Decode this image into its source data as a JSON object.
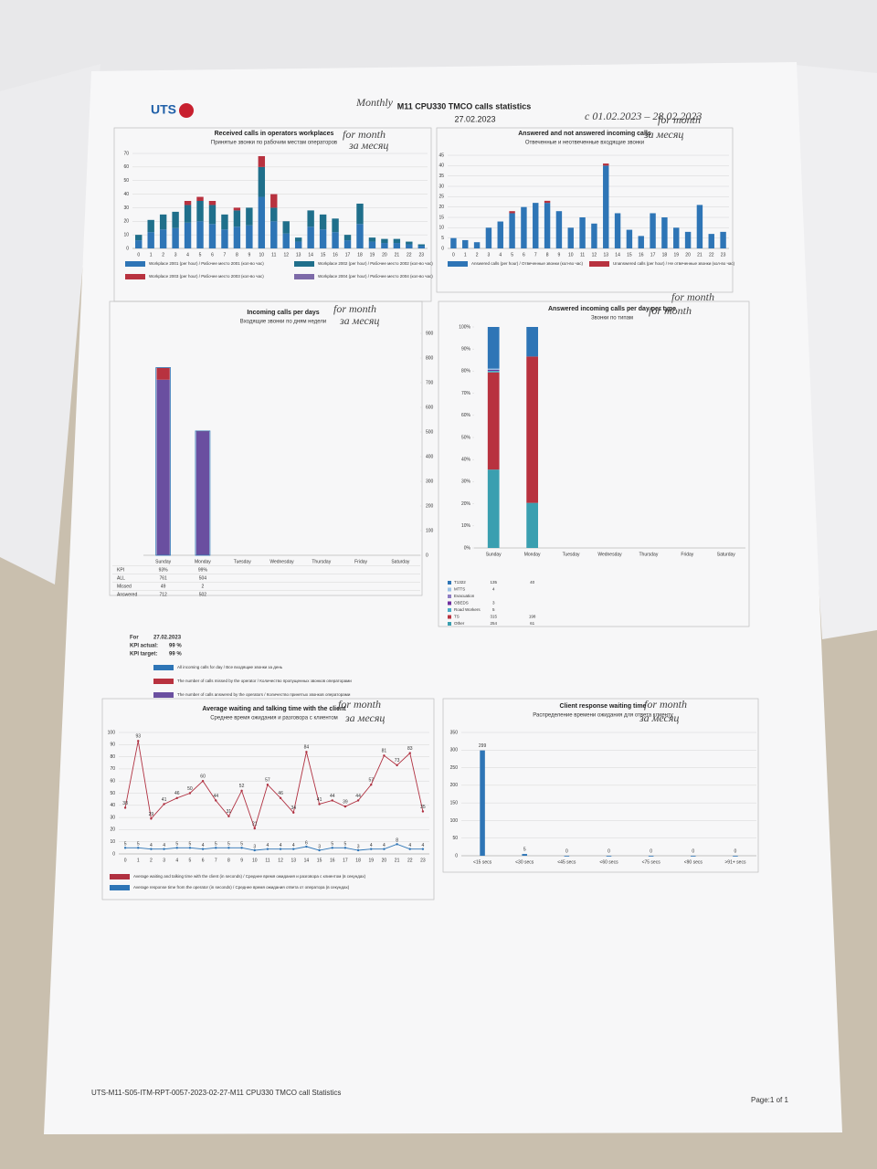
{
  "header": {
    "logo": "UTS",
    "title": "M11 CPU330 TMCO calls statistics",
    "date": "27.02.2023"
  },
  "handwritten_notes": [
    "Monthly",
    "с 01.02.2023 – 28.02.2023",
    "for month",
    "за месяц",
    "for month",
    "за месяц",
    "for month",
    "за месяц",
    "for month",
    "for month",
    "for month",
    "за месяц",
    "for month",
    "за месяц"
  ],
  "kpi_block": {
    "for_label": "For",
    "for_date": "27.02.2023",
    "actual_label": "KPI actual:",
    "actual": "99 %",
    "target_label": "KPI target:",
    "target": "99 %"
  },
  "footer": {
    "doc_id": "UTS-M11-S05-ITM-RPT-0057-2023-02-27-M11 CPU330 TMCO call Statistics",
    "page": "Page:1 of 1"
  },
  "chart_data": [
    {
      "type": "bar",
      "stacked": true,
      "title": "Received calls in operators workplaces",
      "subtitle": "Принятые звонки по рабочим местам операторов",
      "categories": [
        "0",
        "1",
        "2",
        "3",
        "4",
        "5",
        "6",
        "7",
        "8",
        "9",
        "10",
        "11",
        "12",
        "13",
        "14",
        "15",
        "16",
        "17",
        "18",
        "19",
        "20",
        "21",
        "22",
        "23"
      ],
      "series": [
        {
          "name": "Workplace 2001 (per hour) / Рабочее место 2001 (кол-во час)",
          "color": "#2e75b6",
          "values": [
            6,
            12,
            14,
            15,
            19,
            20,
            18,
            14,
            16,
            17,
            38,
            20,
            11,
            5,
            16,
            14,
            12,
            6,
            18,
            5,
            4,
            4,
            3,
            2
          ]
        },
        {
          "name": "Workplace 2002 (per hour) / Рабочее место 2002 (кол-во час)",
          "color": "#1f6f8b",
          "values": [
            4,
            9,
            11,
            12,
            13,
            15,
            14,
            11,
            12,
            13,
            22,
            10,
            9,
            3,
            12,
            11,
            10,
            4,
            15,
            3,
            3,
            3,
            2,
            1
          ]
        },
        {
          "name": "Workplace 2003 (per hour) / Рабочее место 2003 (кол-во час)",
          "color": "#b8323f",
          "values": [
            0,
            0,
            0,
            0,
            3,
            3,
            3,
            0,
            2,
            0,
            8,
            10,
            0,
            0,
            0,
            0,
            0,
            0,
            0,
            0,
            0,
            0,
            0,
            0
          ]
        },
        {
          "name": "Workplace 2004 (per hour) / Рабочее место 2004 (кол-во час)",
          "color": "#7d6aa8",
          "values": [
            0,
            0,
            0,
            0,
            0,
            0,
            0,
            0,
            0,
            0,
            0,
            0,
            0,
            0,
            0,
            0,
            0,
            0,
            0,
            0,
            0,
            0,
            0,
            0
          ]
        }
      ],
      "ylim": [
        0,
        70
      ],
      "yticks": [
        0,
        10,
        20,
        30,
        40,
        50,
        60,
        70
      ],
      "grid": true
    },
    {
      "type": "bar",
      "stacked": true,
      "title": "Answered and not answered incoming calls",
      "subtitle": "Отвеченные и неотвеченные входящие звонки",
      "categories": [
        "0",
        "1",
        "2",
        "3",
        "4",
        "5",
        "6",
        "7",
        "8",
        "9",
        "10",
        "11",
        "12",
        "13",
        "14",
        "15",
        "16",
        "17",
        "18",
        "19",
        "20",
        "21",
        "22",
        "23"
      ],
      "series": [
        {
          "name": "Answered calls (per hour) / Отвеченные звонки (кол-во час)",
          "color": "#2e75b6",
          "values": [
            5,
            4,
            3,
            10,
            13,
            17,
            20,
            22,
            22,
            18,
            10,
            15,
            12,
            40,
            17,
            9,
            6,
            17,
            15,
            10,
            8,
            21,
            7,
            8
          ]
        },
        {
          "name": "Unanswered calls (per hour) / Не отвеченные звонки (кол-во час)",
          "color": "#b8323f",
          "values": [
            0,
            0,
            0,
            0,
            0,
            1,
            0,
            0,
            1,
            0,
            0,
            0,
            0,
            1,
            0,
            0,
            0,
            0,
            0,
            0,
            0,
            0,
            0,
            0
          ]
        }
      ],
      "ylim": [
        0,
        45
      ],
      "yticks": [
        0,
        5,
        10,
        15,
        20,
        25,
        30,
        35,
        40,
        45
      ],
      "grid": true
    },
    {
      "type": "bar",
      "stacked": true,
      "title": "Incoming calls per days",
      "subtitle": "Входящие звонки по дням недели",
      "categories": [
        "Sunday",
        "Monday",
        "Tuesday",
        "Wednesday",
        "Thursday",
        "Friday",
        "Saturday"
      ],
      "series": [
        {
          "name": "All incoming calls for day / Все входящие звонки за день",
          "color": "#2e75b6",
          "style": "outline",
          "axis": "y2",
          "values": [
            761,
            504,
            null,
            null,
            null,
            null,
            null
          ]
        },
        {
          "name": "The number of calls missed by the operator / Количество пропущенных звонков операторами",
          "color": "#b8323f",
          "axis": "y2",
          "values": [
            49,
            2,
            null,
            null,
            null,
            null,
            null
          ]
        },
        {
          "name": "The number of calls answered by the operators / Количество принятых звонков операторами",
          "color": "#6a4fa0",
          "axis": "y2",
          "values": [
            712,
            502,
            null,
            null,
            null,
            null,
            null
          ]
        }
      ],
      "stack_order": [
        2,
        1
      ],
      "table_row_labels": [
        "KPI",
        "ALL",
        "Missed",
        "Answered"
      ],
      "kpi": [
        "93%",
        "99%",
        null,
        null,
        null,
        null,
        null
      ],
      "y2lim": [
        0,
        900
      ],
      "y2ticks": [
        0,
        100,
        200,
        300,
        400,
        500,
        600,
        700,
        800,
        900
      ],
      "grid": false
    },
    {
      "type": "bar",
      "stacked": "percent",
      "title": "Answered incoming calls per day per type",
      "subtitle": "Звонки по типам",
      "categories": [
        "Sunday",
        "Monday",
        "Tuesday",
        "Wednesday",
        "Thursday",
        "Friday",
        "Saturday"
      ],
      "series": [
        {
          "name": "T1322",
          "color": "#2e75b6",
          "values": [
            135,
            40,
            null,
            null,
            null,
            null,
            null
          ]
        },
        {
          "name": "MTTS",
          "color": "#9dc3e6",
          "values": [
            4,
            null,
            null,
            null,
            null,
            null,
            null
          ]
        },
        {
          "name": "Evacuation",
          "color": "#8e7cc3",
          "values": [
            null,
            null,
            null,
            null,
            null,
            null,
            null
          ]
        },
        {
          "name": "OBEDS",
          "color": "#7030a0",
          "values": [
            3,
            null,
            null,
            null,
            null,
            null,
            null
          ]
        },
        {
          "name": "Road Workers",
          "color": "#4bacc6",
          "values": [
            5,
            null,
            null,
            null,
            null,
            null,
            null
          ]
        },
        {
          "name": "TS",
          "color": "#b8323f",
          "values": [
            315,
            198,
            null,
            null,
            null,
            null,
            null
          ]
        },
        {
          "name": "Other",
          "color": "#3a9fb0",
          "values": [
            254,
            61,
            null,
            null,
            null,
            null,
            null
          ]
        }
      ],
      "ylim": [
        0,
        100
      ],
      "yticks": [
        {
          "value": 0,
          "label": "0%"
        },
        {
          "value": 10,
          "label": "10%"
        },
        {
          "value": 20,
          "label": "20%"
        },
        {
          "value": 30,
          "label": "30%"
        },
        {
          "value": 40,
          "label": "40%"
        },
        {
          "value": 50,
          "label": "50%"
        },
        {
          "value": 60,
          "label": "60%"
        },
        {
          "value": 70,
          "label": "70%"
        },
        {
          "value": 80,
          "label": "80%"
        },
        {
          "value": 90,
          "label": "90%"
        },
        {
          "value": 100,
          "label": "100%"
        }
      ],
      "grid": false
    },
    {
      "type": "line",
      "title": "Average waiting and talking time with the client",
      "subtitle": "Среднее время ожидания и разговора с клиентом",
      "categories": [
        "0",
        "1",
        "2",
        "3",
        "4",
        "5",
        "6",
        "7",
        "8",
        "9",
        "10",
        "11",
        "12",
        "13",
        "14",
        "15",
        "16",
        "17",
        "18",
        "19",
        "20",
        "21",
        "22",
        "23"
      ],
      "series": [
        {
          "name": "Average waiting and talking time with the client (in seconds) / Среднее время ожидания и разговора с клиентом (в секундах)",
          "color": "#b03040",
          "values": [
            38,
            93,
            29,
            41,
            46,
            50,
            60,
            44,
            31,
            52,
            21,
            57,
            46,
            34,
            84,
            41,
            44,
            39,
            44,
            57,
            81,
            73,
            83,
            35
          ]
        },
        {
          "name": "Average response time from the operator (in seconds) / Среднее время ожидания ответа от оператора (в секундах)",
          "color": "#2e75b6",
          "values": [
            5,
            5,
            4,
            4,
            5,
            5,
            4,
            5,
            5,
            5,
            3,
            4,
            4,
            4,
            6,
            3,
            5,
            5,
            3,
            4,
            4,
            8,
            4,
            4
          ]
        }
      ],
      "ylim": [
        0,
        100
      ],
      "yticks": [
        0,
        10,
        20,
        30,
        40,
        50,
        60,
        70,
        80,
        90,
        100
      ],
      "grid": true
    },
    {
      "type": "bar",
      "title": "Client response waiting time",
      "subtitle": "Распределение времени ожидания для ответа клиенту",
      "categories": [
        "<15 secs",
        "<30 secs",
        "<45 secs",
        "<60 secs",
        "<75 secs",
        "<90 secs",
        ">91+ secs"
      ],
      "values": [
        299,
        5,
        0,
        0,
        0,
        0,
        0
      ],
      "color": "#2e75b6",
      "ylim": [
        0,
        350
      ],
      "yticks": [
        0,
        50,
        100,
        150,
        200,
        250,
        300,
        350
      ],
      "grid": true
    }
  ]
}
